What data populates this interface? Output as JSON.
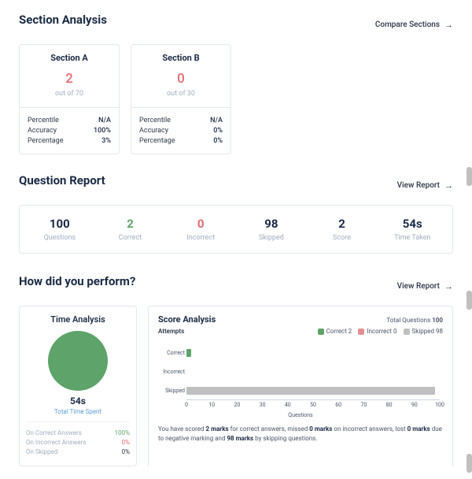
{
  "section_analysis": {
    "heading": "Section Analysis",
    "compare_link": "Compare Sections",
    "sections": [
      {
        "title": "Section A",
        "score": "2",
        "outof": "out of 70",
        "stats": {
          "percentile_lbl": "Percentile",
          "percentile": "N/A",
          "accuracy_lbl": "Accuracy",
          "accuracy": "100%",
          "percentage_lbl": "Percentage",
          "percentage": "3%"
        }
      },
      {
        "title": "Section B",
        "score": "0",
        "outof": "out of 30",
        "stats": {
          "percentile_lbl": "Percentile",
          "percentile": "N/A",
          "accuracy_lbl": "Accuracy",
          "accuracy": "0%",
          "percentage_lbl": "Percentage",
          "percentage": "0%"
        }
      }
    ]
  },
  "question_report": {
    "heading": "Question Report",
    "view_link": "View Report",
    "cells": [
      {
        "val": "100",
        "label": "Questions",
        "cls": ""
      },
      {
        "val": "2",
        "label": "Correct",
        "cls": "green"
      },
      {
        "val": "0",
        "label": "Incorrect",
        "cls": "red"
      },
      {
        "val": "98",
        "label": "Skipped",
        "cls": ""
      },
      {
        "val": "2",
        "label": "Score",
        "cls": ""
      },
      {
        "val": "54s",
        "label": "Time Taken",
        "cls": ""
      }
    ]
  },
  "performance": {
    "heading": "How did you perform?",
    "view_link": "View Report",
    "time": {
      "title": "Time Analysis",
      "value": "54s",
      "sub": "Total Time Spent",
      "stats": [
        {
          "lbl": "On Correct Answers",
          "v": "100%",
          "cls": "green"
        },
        {
          "lbl": "On Incorrect Answers",
          "v": "0%",
          "cls": "red"
        },
        {
          "lbl": "On Skipped",
          "v": "0%",
          "cls": "grey"
        }
      ],
      "donut_color": "#5ea36a"
    },
    "score": {
      "title": "Score Analysis",
      "total_lbl": "Total Questions",
      "total_val": "100",
      "attempts_lbl": "Attempts",
      "legend": [
        {
          "name": "Correct",
          "val": "2",
          "color": "#5ea36a"
        },
        {
          "name": "Incorrect",
          "val": "0",
          "color": "#e38f8f"
        },
        {
          "name": "Skipped",
          "val": "98",
          "color": "#bfbfbf"
        }
      ],
      "chart": {
        "type": "bar",
        "orientation": "horizontal",
        "xlim": [
          0,
          100
        ],
        "xtick_step": 10,
        "categories": [
          "Correct",
          "Incorrect",
          "Skipped"
        ],
        "values": [
          2,
          0,
          98
        ],
        "bar_colors": [
          "#5ea36a",
          "#e38f8f",
          "#bfbfbf"
        ],
        "xlabel": "Questions",
        "background": "#ffffff",
        "axis_color": "#cbd5e0",
        "label_fontsize": 7
      },
      "text_parts": {
        "p1": "You have scored ",
        "b1": "2 marks",
        "p2": " for correct answers, missed ",
        "b2": "0 marks",
        "p3": " on incorrect answers, lost ",
        "b3": "0 marks",
        "p4": " due to negative marking and ",
        "b4": "98 marks",
        "p5": " by skipping questions."
      }
    }
  }
}
